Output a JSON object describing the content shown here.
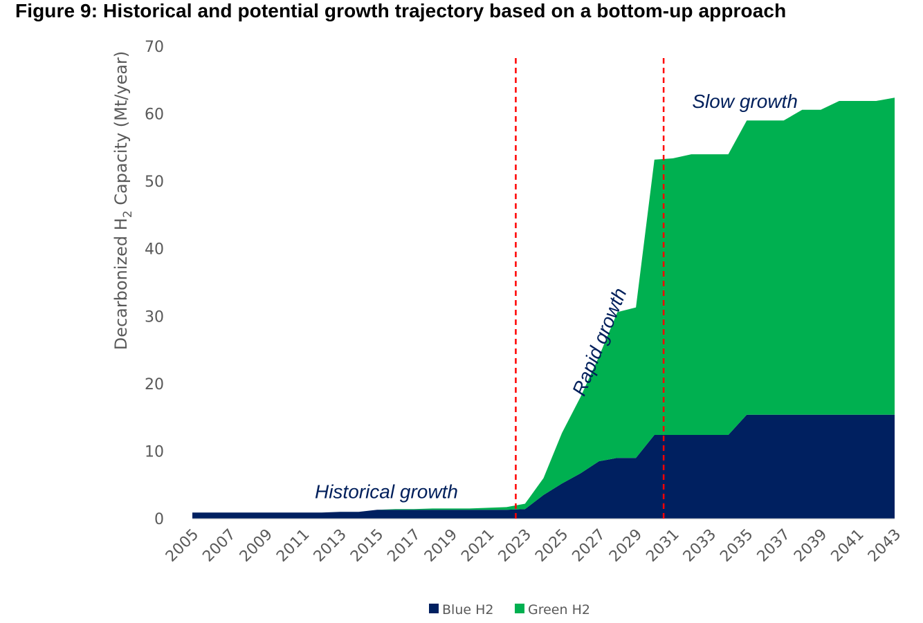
{
  "title": "Figure 9: Historical and potential growth trajectory based on a bottom-up approach",
  "chart_data": {
    "type": "area",
    "stacked": true,
    "ylabel_prefix": "Decarbonized H",
    "ylabel_sub": "2",
    "ylabel_suffix": " Capacity (Mt/year)",
    "ylim": [
      0,
      70
    ],
    "yticks": [
      0,
      10,
      20,
      30,
      40,
      50,
      60,
      70
    ],
    "xtick_labels": [
      "2005",
      "2007",
      "2009",
      "2011",
      "2013",
      "2015",
      "2017",
      "2019",
      "2021",
      "2023",
      "2025",
      "2027",
      "2029",
      "2031",
      "2033",
      "2035",
      "2037",
      "2039",
      "2041",
      "2043"
    ],
    "x": [
      2005,
      2006,
      2007,
      2008,
      2009,
      2010,
      2011,
      2012,
      2013,
      2014,
      2015,
      2016,
      2017,
      2018,
      2019,
      2020,
      2021,
      2022,
      2023,
      2024,
      2025,
      2026,
      2027,
      2028,
      2029,
      2030,
      2031,
      2032,
      2033,
      2034,
      2035,
      2036,
      2037,
      2038,
      2039,
      2040,
      2041,
      2042,
      2043
    ],
    "series": [
      {
        "name": "Blue H2",
        "color": "#002060",
        "values": [
          0.9,
          0.9,
          0.9,
          0.9,
          0.9,
          0.9,
          0.9,
          0.9,
          1.0,
          1.0,
          1.3,
          1.3,
          1.3,
          1.3,
          1.3,
          1.3,
          1.3,
          1.3,
          1.4,
          3.5,
          5.2,
          6.7,
          8.5,
          9.0,
          9.0,
          12.4,
          12.4,
          12.4,
          12.4,
          12.4,
          15.4,
          15.4,
          15.4,
          15.4,
          15.4,
          15.4,
          15.4,
          15.4,
          15.4
        ]
      },
      {
        "name": "Green H2",
        "color": "#00b050",
        "values": [
          0,
          0,
          0,
          0,
          0,
          0,
          0,
          0,
          0,
          0,
          0,
          0.1,
          0.1,
          0.2,
          0.2,
          0.2,
          0.3,
          0.4,
          0.8,
          2.5,
          7.5,
          11.3,
          15.5,
          21.6,
          22.3,
          40.8,
          41.0,
          41.6,
          41.6,
          41.6,
          43.6,
          43.6,
          43.6,
          45.2,
          45.2,
          46.5,
          46.5,
          46.5,
          47.0
        ]
      }
    ],
    "markers": [
      {
        "x": 2022.5,
        "color": "#ff0000",
        "style": "dashed"
      },
      {
        "x": 2030.5,
        "color": "#ff0000",
        "style": "dashed"
      }
    ],
    "annotations": [
      {
        "text": "Historical growth",
        "x": 2015.5,
        "y": 3.0
      },
      {
        "text": "Rapid growth",
        "x": 2026.2,
        "y": 18.0
      },
      {
        "text": "Slow growth",
        "x": 2034.9,
        "y": 60.9
      }
    ],
    "legend": "bottom",
    "grid": false
  }
}
